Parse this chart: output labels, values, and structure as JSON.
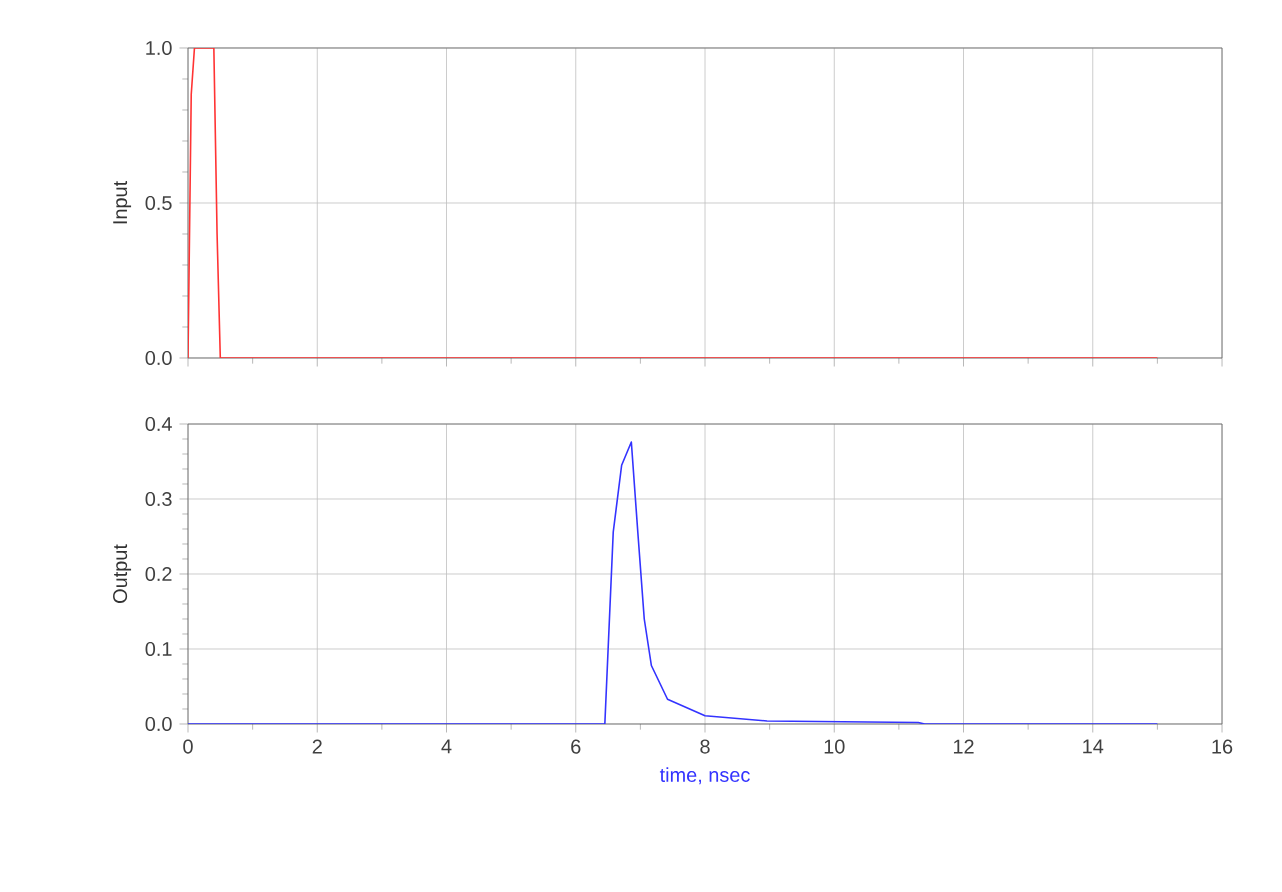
{
  "chart_data": [
    {
      "type": "line",
      "ylabel": "Input",
      "xlim": [
        0,
        16
      ],
      "ylim": [
        0,
        1
      ],
      "xticks": [
        {
          "value": 0,
          "label": null
        },
        {
          "value": 2,
          "label": null
        },
        {
          "value": 4,
          "label": null
        },
        {
          "value": 6,
          "label": null
        },
        {
          "value": 8,
          "label": null
        },
        {
          "value": 10,
          "label": null
        },
        {
          "value": 12,
          "label": null
        },
        {
          "value": 14,
          "label": null
        },
        {
          "value": 16,
          "label": null
        }
      ],
      "yticks": [
        {
          "value": 0,
          "label": "0.0"
        },
        {
          "value": 0.5,
          "label": "0.5"
        },
        {
          "value": 1,
          "label": "1.0"
        }
      ],
      "grid": true,
      "tick_labels": "y",
      "series": [
        {
          "color": "#ff3333",
          "x": [
            0,
            0.05,
            0.1,
            0.4,
            0.45,
            0.5,
            15
          ],
          "values": [
            0,
            0.85,
            1,
            1,
            0.4,
            0,
            0
          ]
        }
      ]
    },
    {
      "type": "line",
      "ylabel": "Output",
      "xlabel": "time, nsec",
      "xlim": [
        0,
        16
      ],
      "ylim": [
        0,
        0.4
      ],
      "xticks": [
        0,
        2,
        4,
        6,
        8,
        10,
        12,
        14,
        16
      ],
      "yticks": [
        {
          "value": 0,
          "label": "0.0"
        },
        {
          "value": 0.1,
          "label": "0.1"
        },
        {
          "value": 0.2,
          "label": "0.2"
        },
        {
          "value": 0.3,
          "label": "0.3"
        },
        {
          "value": 0.4,
          "label": "0.4"
        }
      ],
      "grid": true,
      "series": [
        {
          "color": "#3333ff",
          "x": [
            0,
            6.45,
            6.58,
            6.71,
            6.86,
            6.96,
            7.06,
            7.17,
            7.42,
            8.0,
            8.96,
            11.3,
            11.4,
            15
          ],
          "values": [
            0,
            0,
            0.256,
            0.345,
            0.376,
            0.256,
            0.14,
            0.078,
            0.033,
            0.011,
            0.004,
            0.002,
            0,
            0
          ]
        }
      ]
    }
  ]
}
